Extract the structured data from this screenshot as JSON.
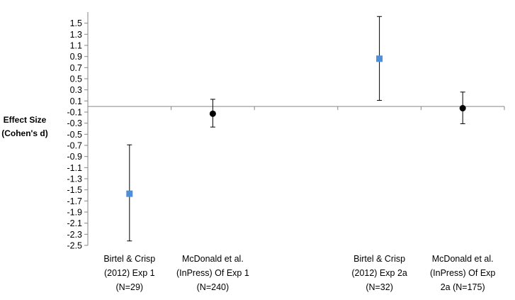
{
  "chart_data": {
    "type": "scatter",
    "ylabel_lines": [
      "Effect Size",
      "(Cohen's d)"
    ],
    "ylim": [
      -2.5,
      1.7
    ],
    "yticks": [
      1.5,
      1.3,
      1.1,
      0.9,
      0.7,
      0.5,
      0.3,
      0.1,
      -0.1,
      -0.3,
      -0.5,
      -0.7,
      -0.9,
      -1.1,
      -1.3,
      -1.5,
      -1.7,
      -1.9,
      -2.1,
      -2.3,
      -2.5
    ],
    "ytick_labels": [
      "1.5",
      "1.3",
      "1.1",
      "0.9",
      "0.7",
      "0.5",
      "0.3",
      "0.1",
      "-0.1",
      "-0.3",
      "-0.5",
      "-0.7",
      "-0.9",
      "-1.1",
      "-1.3",
      "-1.5",
      "-1.7",
      "-1.9",
      "-2.1",
      "-2.3",
      "-2.5"
    ],
    "points": [
      {
        "lines": [
          "Birtel & Crisp",
          "(2012) Exp 1",
          "(N=29)"
        ],
        "value": -1.57,
        "ci_low": -2.42,
        "ci_high": -0.69,
        "marker": "square",
        "color": "#4f8fd9"
      },
      {
        "lines": [
          "McDonald et al.",
          "(InPress) Of Exp 1",
          "(N=240)"
        ],
        "value": -0.13,
        "ci_low": -0.37,
        "ci_high": 0.13,
        "marker": "circle",
        "color": "#000000"
      },
      {
        "lines": [
          "Birtel & Crisp",
          "(2012) Exp 2a",
          "(N=32)"
        ],
        "value": 0.86,
        "ci_low": 0.11,
        "ci_high": 1.62,
        "marker": "square",
        "color": "#4f8fd9"
      },
      {
        "lines": [
          "McDonald et al.",
          "(InPress) Of Exp",
          "2a (N=175)"
        ],
        "value": -0.03,
        "ci_low": -0.31,
        "ci_high": 0.26,
        "marker": "circle",
        "color": "#000000"
      }
    ]
  }
}
